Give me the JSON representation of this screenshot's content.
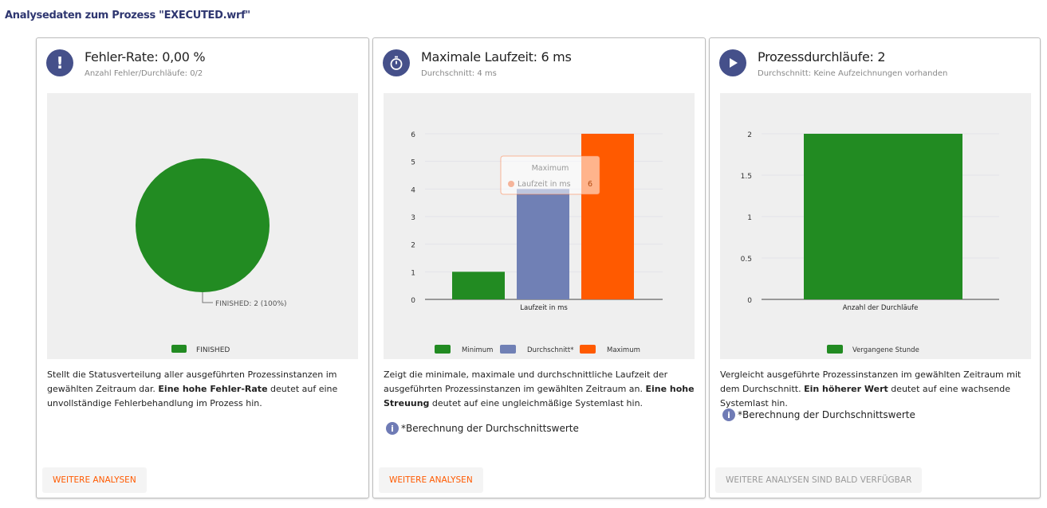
{
  "page_title": "Analysedaten zum Prozess \"EXECUTED.wrf\"",
  "cards": [
    {
      "icon": "exclamation-icon",
      "title": "Fehler-Rate: 0,00 %",
      "subtitle": "Anzahl Fehler/Durchläufe: 0/2",
      "desc_pre": "Stellt die Statusverteilung aller ausgeführten Prozessinstanzen im gewählten Zeitraum dar. ",
      "desc_bold": "Eine hohe Fehler-Rate",
      "desc_post": " deutet auf eine unvollständige Fehlerbehandlung im Prozess hin.",
      "button": "WEITERE ANALYSEN"
    },
    {
      "icon": "stopwatch-icon",
      "title": "Maximale Laufzeit: 6 ms",
      "subtitle": "Durchschnitt: 4 ms",
      "desc_pre": "Zeigt die minimale, maximale und durchschnittliche Laufzeit der ausgeführten Prozessinstanzen im gewählten Zeitraum an. ",
      "desc_bold": "Eine hohe Streuung",
      "desc_post": " deutet auf eine ungleichmäßige Systemlast hin.",
      "note": "*Berechnung der Durchschnittswerte",
      "button": "WEITERE ANALYSEN"
    },
    {
      "icon": "play-icon",
      "title": "Prozessdurchläufe: 2",
      "subtitle": "Durchschnitt: Keine Aufzeichnungen vorhanden",
      "desc_pre": "Vergleicht ausgeführte Prozessinstanzen im gewählten Zeitraum mit dem Durchschnitt. ",
      "desc_bold": "Ein höherer Wert",
      "desc_post": " deutet auf eine wachsende Systemlast hin.",
      "note": "*Berechnung der Durchschnittswerte",
      "button": "WEITERE ANALYSEN SIND BALD VERFÜGBAR"
    }
  ],
  "chart_data": [
    {
      "type": "pie",
      "slices": [
        {
          "label": "FINISHED",
          "value": 2,
          "percent": 100,
          "color": "#228b22"
        }
      ],
      "data_label": "FINISHED: 2 (100%)",
      "legend": [
        "FINISHED"
      ],
      "legend_position": "bottom"
    },
    {
      "type": "bar",
      "xlabel": "Laufzeit in ms",
      "ylim": [
        0,
        6
      ],
      "yticks": [
        "0",
        "1",
        "2",
        "3",
        "4",
        "5",
        "6"
      ],
      "series": [
        {
          "name": "Minimum",
          "value": 1,
          "color": "#228b22"
        },
        {
          "name": "Durchschnitt*",
          "value": 4,
          "color": "#7080b5"
        },
        {
          "name": "Maximum",
          "value": 6,
          "color": "#ff5a00"
        }
      ],
      "tooltip": {
        "title": "Maximum",
        "label": "Laufzeit in ms",
        "value": "6"
      },
      "legend_position": "bottom",
      "grid": true
    },
    {
      "type": "bar",
      "xlabel": "Anzahl der Durchläufe",
      "ylim": [
        0,
        2
      ],
      "yticks": [
        "0",
        "0.5",
        "1",
        "1.5",
        "2"
      ],
      "series": [
        {
          "name": "Vergangene Stunde",
          "value": 2,
          "color": "#228b22"
        }
      ],
      "legend_position": "bottom",
      "grid": true
    }
  ]
}
